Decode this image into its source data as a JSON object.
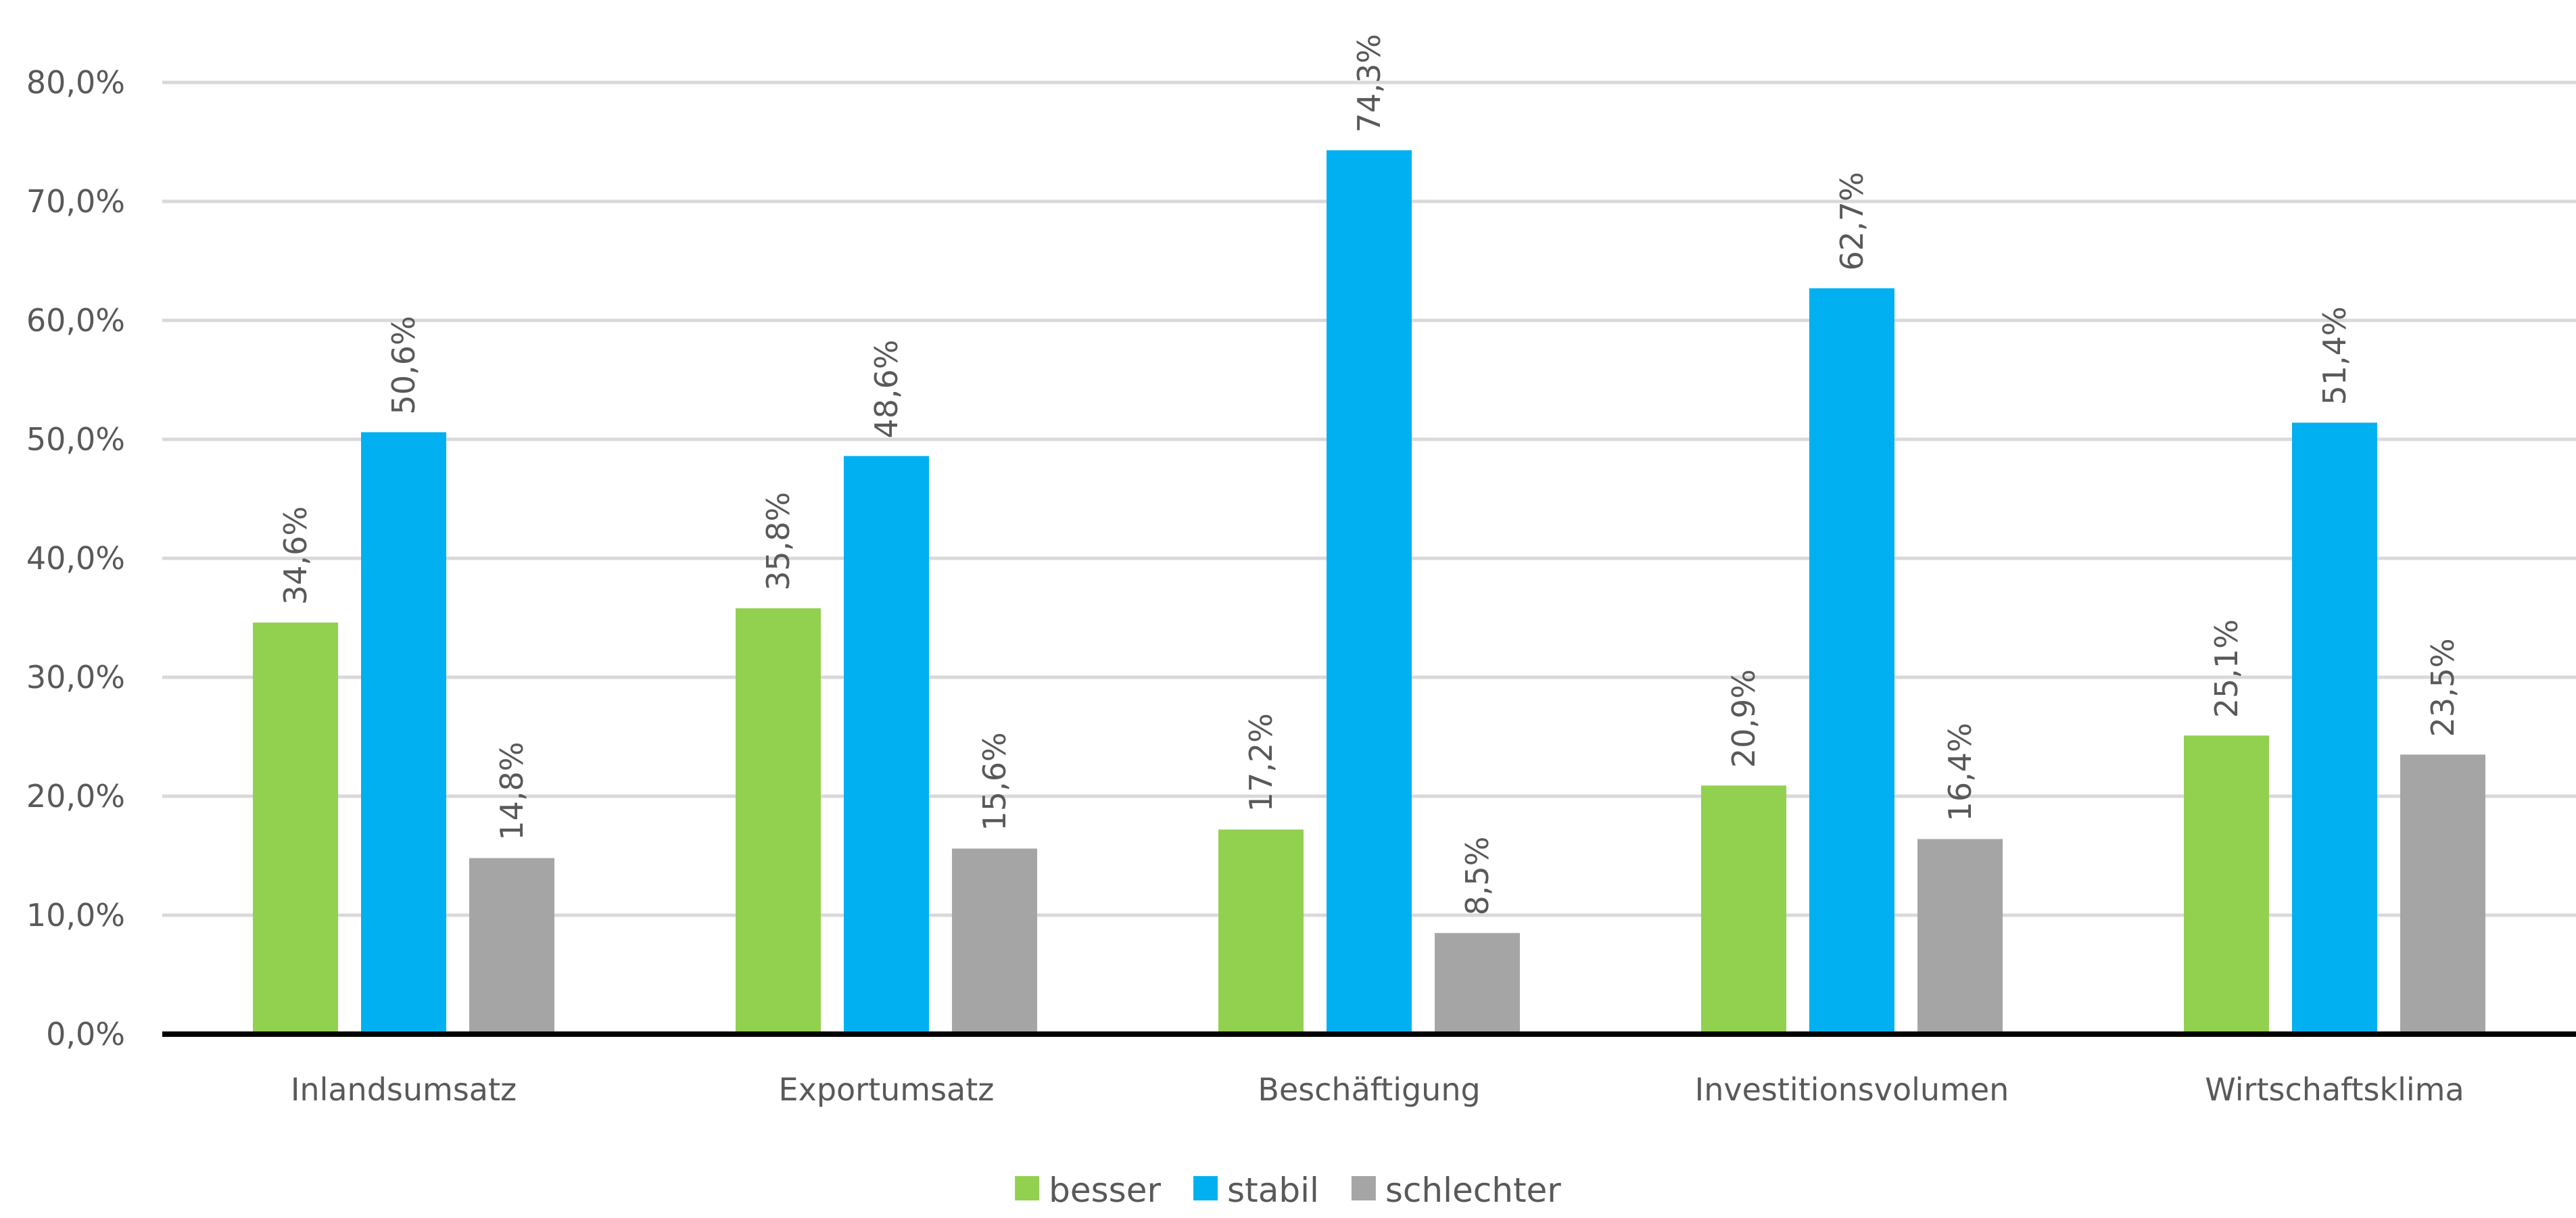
{
  "chart_data": {
    "type": "bar",
    "title": "",
    "xlabel": "",
    "ylabel": "",
    "categories": [
      "Inlandsumsatz",
      "Exportumsatz",
      "Beschäftigung",
      "Investitionsvolumen",
      "Wirtschaftsklima"
    ],
    "series": [
      {
        "name": "besser",
        "color": "#92d050",
        "values": [
          34.6,
          35.8,
          17.2,
          20.9,
          25.1
        ],
        "labels": [
          "34,6%",
          "35,8%",
          "17,2%",
          "20,9%",
          "25,1%"
        ]
      },
      {
        "name": "stabil",
        "color": "#00b0f0",
        "values": [
          50.6,
          48.6,
          74.3,
          62.7,
          51.4
        ],
        "labels": [
          "50,6%",
          "48,6%",
          "74,3%",
          "62,7%",
          "51,4%"
        ]
      },
      {
        "name": "schlechter",
        "color": "#a5a5a5",
        "values": [
          14.8,
          15.6,
          8.5,
          16.4,
          23.5
        ],
        "labels": [
          "14,8%",
          "15,6%",
          "8,5%",
          "16,4%",
          "23,5%"
        ]
      }
    ],
    "ylim": [
      0,
      80
    ],
    "yticks": [
      0,
      10,
      20,
      30,
      40,
      50,
      60,
      70,
      80
    ],
    "ytick_labels": [
      "0,0%",
      "10,0%",
      "20,0%",
      "30,0%",
      "40,0%",
      "50,0%",
      "60,0%",
      "70,0%",
      "80,0%"
    ],
    "grid": true,
    "legend_position": "bottom-center"
  }
}
